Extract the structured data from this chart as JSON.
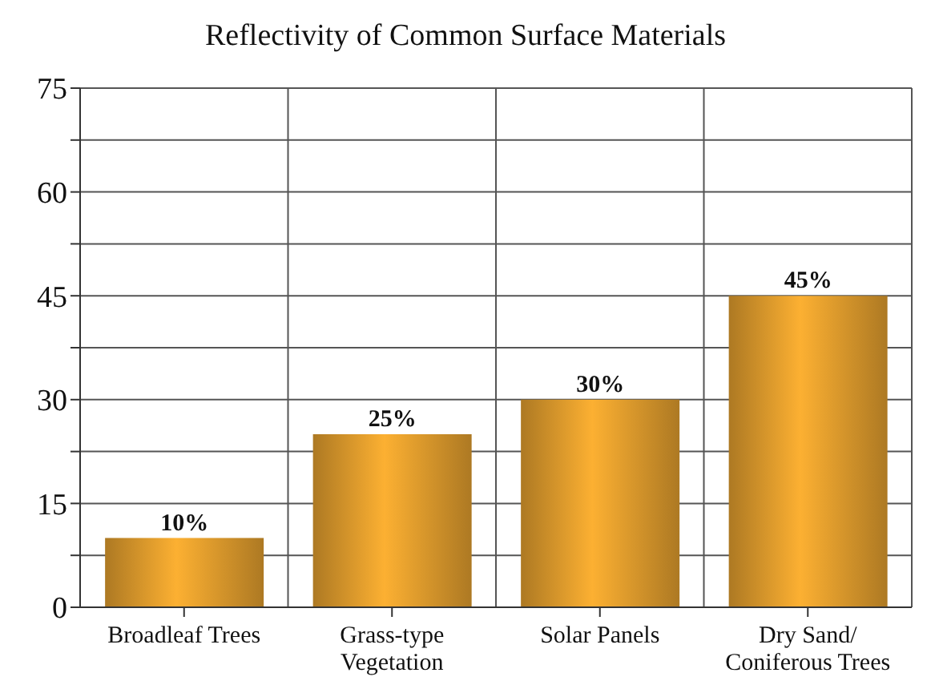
{
  "chart_data": {
    "type": "bar",
    "title": "Reflectivity of Common Surface Materials",
    "categories": [
      "Broadleaf Trees",
      "Grass-type\nVegetation",
      "Solar Panels",
      "Dry Sand/\nConiferous Trees"
    ],
    "values": [
      10,
      25,
      30,
      45
    ],
    "value_labels": [
      "10%",
      "25%",
      "30%",
      "45%"
    ],
    "color": "#f0a830",
    "ylim": [
      0,
      75
    ],
    "yticks": [
      0,
      {
        "value": 7.5,
        "label": null
      },
      15,
      {
        "value": 22.5,
        "label": null
      },
      30,
      {
        "value": 37.5,
        "label": null
      },
      45,
      {
        "value": 52.5,
        "label": null
      },
      60,
      {
        "value": 67.5,
        "label": null
      },
      75
    ],
    "grid": true
  }
}
